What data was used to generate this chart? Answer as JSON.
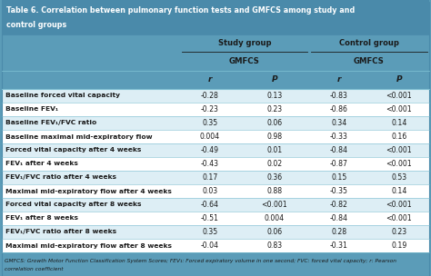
{
  "title_line1": "Table 6. Correlation between pulmonary function tests and GMFCS among study and",
  "title_line2": "control groups",
  "bg_color": "#5b9cb8",
  "title_bg": "#4a8aaa",
  "header_bg": "#6aaec8",
  "row_even_bg": "#ddeef5",
  "row_odd_bg": "#ffffff",
  "footer_bg": "#6aaec8",
  "rows": [
    [
      "Baseline forced vital capacity",
      "-0.28",
      "0.13",
      "-0.83",
      "<0.001"
    ],
    [
      "Baseline FEV₁",
      "-0.23",
      "0.23",
      "-0.86",
      "<0.001"
    ],
    [
      "Baseline FEV₁/FVC ratio",
      "0.35",
      "0.06",
      "0.34",
      "0.14"
    ],
    [
      "Baseline maximal mid-expiratory flow",
      "0.004",
      "0.98",
      "-0.33",
      "0.16"
    ],
    [
      "Forced vital capacity after 4 weeks",
      "-0.49",
      "0.01",
      "-0.84",
      "<0.001"
    ],
    [
      "FEV₁ after 4 weeks",
      "-0.43",
      "0.02",
      "-0.87",
      "<0.001"
    ],
    [
      "FEV₁/FVC ratio after 4 weeks",
      "0.17",
      "0.36",
      "0.15",
      "0.53"
    ],
    [
      "Maximal mid-expiratory flow after 4 weeks",
      "0.03",
      "0.88",
      "-0.35",
      "0.14"
    ],
    [
      "Forced vital capacity after 8 weeks",
      "-0.64",
      "<0.001",
      "-0.82",
      "<0.001"
    ],
    [
      "FEV₁ after 8 weeks",
      "-0.51",
      "0.004",
      "-0.84",
      "<0.001"
    ],
    [
      "FEV₁/FVC ratio after 8 weeks",
      "0.35",
      "0.06",
      "0.28",
      "0.23"
    ],
    [
      "Maximal mid-expiratory flow after 8 weeks",
      "-0.04",
      "0.83",
      "-0.31",
      "0.19"
    ]
  ],
  "footer": "GMFCS: Growth Motor Function Classification System Scores; FEV₁: Forced expiratory volume in one second; FVC: forced vital capacity; r: Pearson\ncorrelation coefficient",
  "divider_color": "#7bbdd0",
  "text_dark": "#1a1a1a",
  "text_white": "#ffffff"
}
